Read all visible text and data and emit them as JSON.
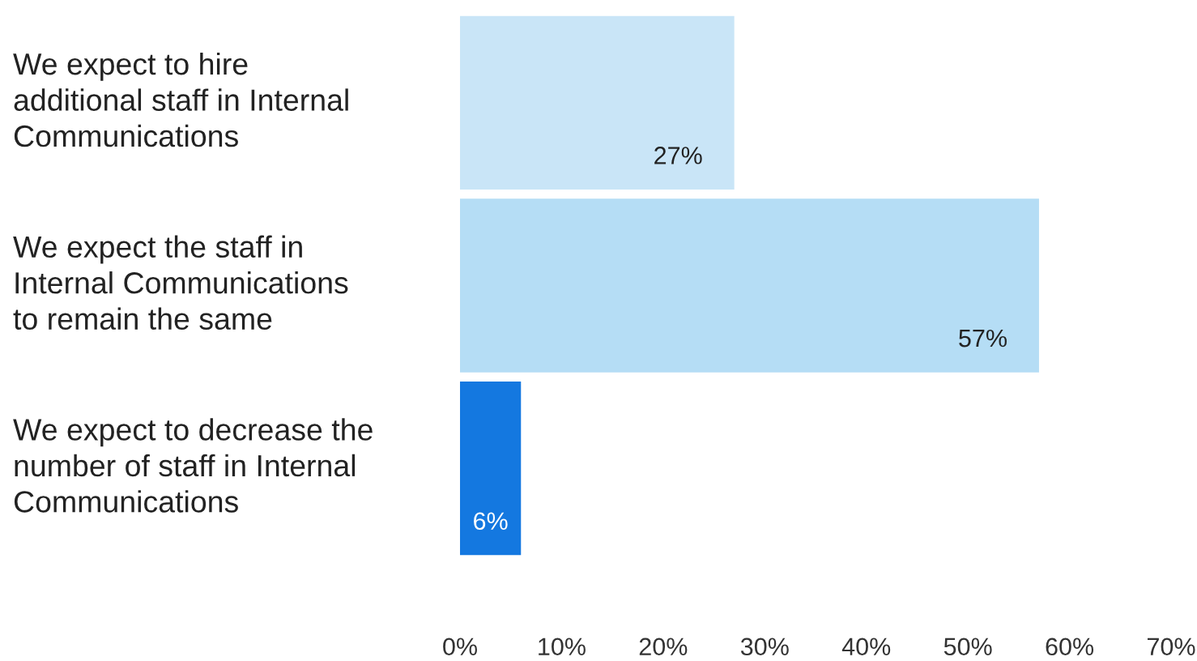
{
  "chart_data": {
    "type": "bar",
    "orientation": "horizontal",
    "categories": [
      "We expect to hire\nadditional staff in Internal\nCommunications",
      "We expect the staff in\nInternal Communications\nto remain the same",
      "We expect to decrease the\nnumber of staff in Internal\nCommunications"
    ],
    "values": [
      27,
      57,
      6
    ],
    "colors": [
      "#c9e5f7",
      "#b5ddf5",
      "#1478e0"
    ],
    "value_labels": [
      "27%",
      "57%",
      "6%"
    ],
    "xlim": [
      0,
      70
    ],
    "xticks": [
      {
        "value": 0,
        "label": "0%"
      },
      {
        "value": 10,
        "label": "10%"
      },
      {
        "value": 20,
        "label": "20%"
      },
      {
        "value": 30,
        "label": "30%"
      },
      {
        "value": 40,
        "label": "40%"
      },
      {
        "value": 50,
        "label": "50%"
      },
      {
        "value": 60,
        "label": "60%"
      },
      {
        "value": 70,
        "label": "70%"
      }
    ],
    "grid": false,
    "legend": false
  }
}
